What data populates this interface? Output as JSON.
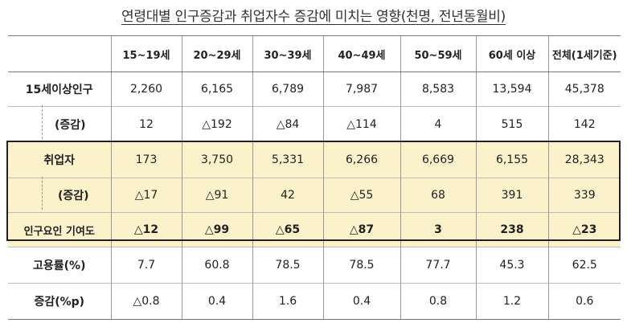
{
  "title": "연령대별 인구증감과 취업자수 증감에 미치는 영향(천명, 전년동월비)",
  "headers": [
    "",
    "15~19세",
    "20~29세",
    "30~39세",
    "40~49세",
    "50~59세",
    "60세 이상",
    "전체(1세기준)"
  ],
  "rows": [
    {
      "label": "15세이상인구",
      "values": [
        "2,260",
        "6,165",
        "6,789",
        "7,987",
        "8,583",
        "13,594",
        "45,378"
      ]
    },
    {
      "label": "(증감)",
      "values": [
        "12",
        "△192",
        "△84",
        "△114",
        "4",
        "515",
        "142"
      ]
    },
    {
      "label": "취업자",
      "values": [
        "173",
        "3,750",
        "5,331",
        "6,266",
        "6,669",
        "6,155",
        "28,343"
      ]
    },
    {
      "label": "(증감)",
      "values": [
        "△17",
        "△91",
        "42",
        "△55",
        "68",
        "391",
        "339"
      ]
    },
    {
      "label": "인구요인 기여도",
      "values": [
        "△12",
        "△99",
        "△65",
        "△87",
        "3",
        "238",
        "△23"
      ]
    },
    {
      "label": "고용률(%)",
      "values": [
        "7.7",
        "60.8",
        "78.5",
        "78.5",
        "77.7",
        "45.3",
        "62.5"
      ]
    },
    {
      "label": "증감(%p)",
      "values": [
        "△0.8",
        "0.4",
        "1.6",
        "0.4",
        "0.8",
        "1.2",
        "0.6"
      ]
    }
  ]
}
